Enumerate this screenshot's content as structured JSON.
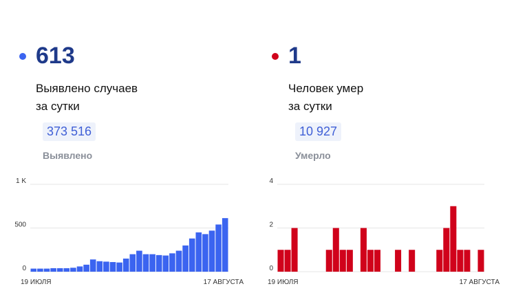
{
  "cases": {
    "count": "613",
    "desc_line1": "Выявлено случаев",
    "desc_line2": "за сутки",
    "total": "373 516",
    "total_label": "Выявлено",
    "color": "#3b64f0"
  },
  "deaths": {
    "count": "1",
    "desc_line1": "Человек умер",
    "desc_line2": "за сутки",
    "total": "10 927",
    "total_label": "Умерло",
    "color": "#d0021b"
  },
  "chart_data": [
    {
      "type": "bar",
      "ylim": [
        0,
        1000
      ],
      "yticks": [
        0,
        500,
        1000
      ],
      "ytick_labels": [
        "0",
        "500",
        "1 K"
      ],
      "x_start_label": "19 ИЮЛЯ",
      "x_end_label": "17 АВГУСТА",
      "grid": true,
      "color": "#3b64f0",
      "values": [
        35,
        35,
        35,
        40,
        40,
        40,
        45,
        60,
        80,
        140,
        120,
        115,
        110,
        105,
        150,
        200,
        240,
        200,
        200,
        190,
        185,
        210,
        240,
        300,
        380,
        450,
        430,
        470,
        540,
        613
      ]
    },
    {
      "type": "bar",
      "ylim": [
        0,
        4
      ],
      "yticks": [
        0,
        2,
        4
      ],
      "ytick_labels": [
        "0",
        "2",
        "4"
      ],
      "x_start_label": "19 ИЮЛЯ",
      "x_end_label": "17 АВГУСТА",
      "grid": true,
      "color": "#d0021b",
      "values": [
        1,
        1,
        2,
        0,
        0,
        0,
        0,
        1,
        2,
        1,
        1,
        0,
        2,
        1,
        1,
        0,
        0,
        1,
        0,
        1,
        0,
        0,
        0,
        1,
        2,
        3,
        1,
        1,
        0,
        1
      ]
    }
  ]
}
